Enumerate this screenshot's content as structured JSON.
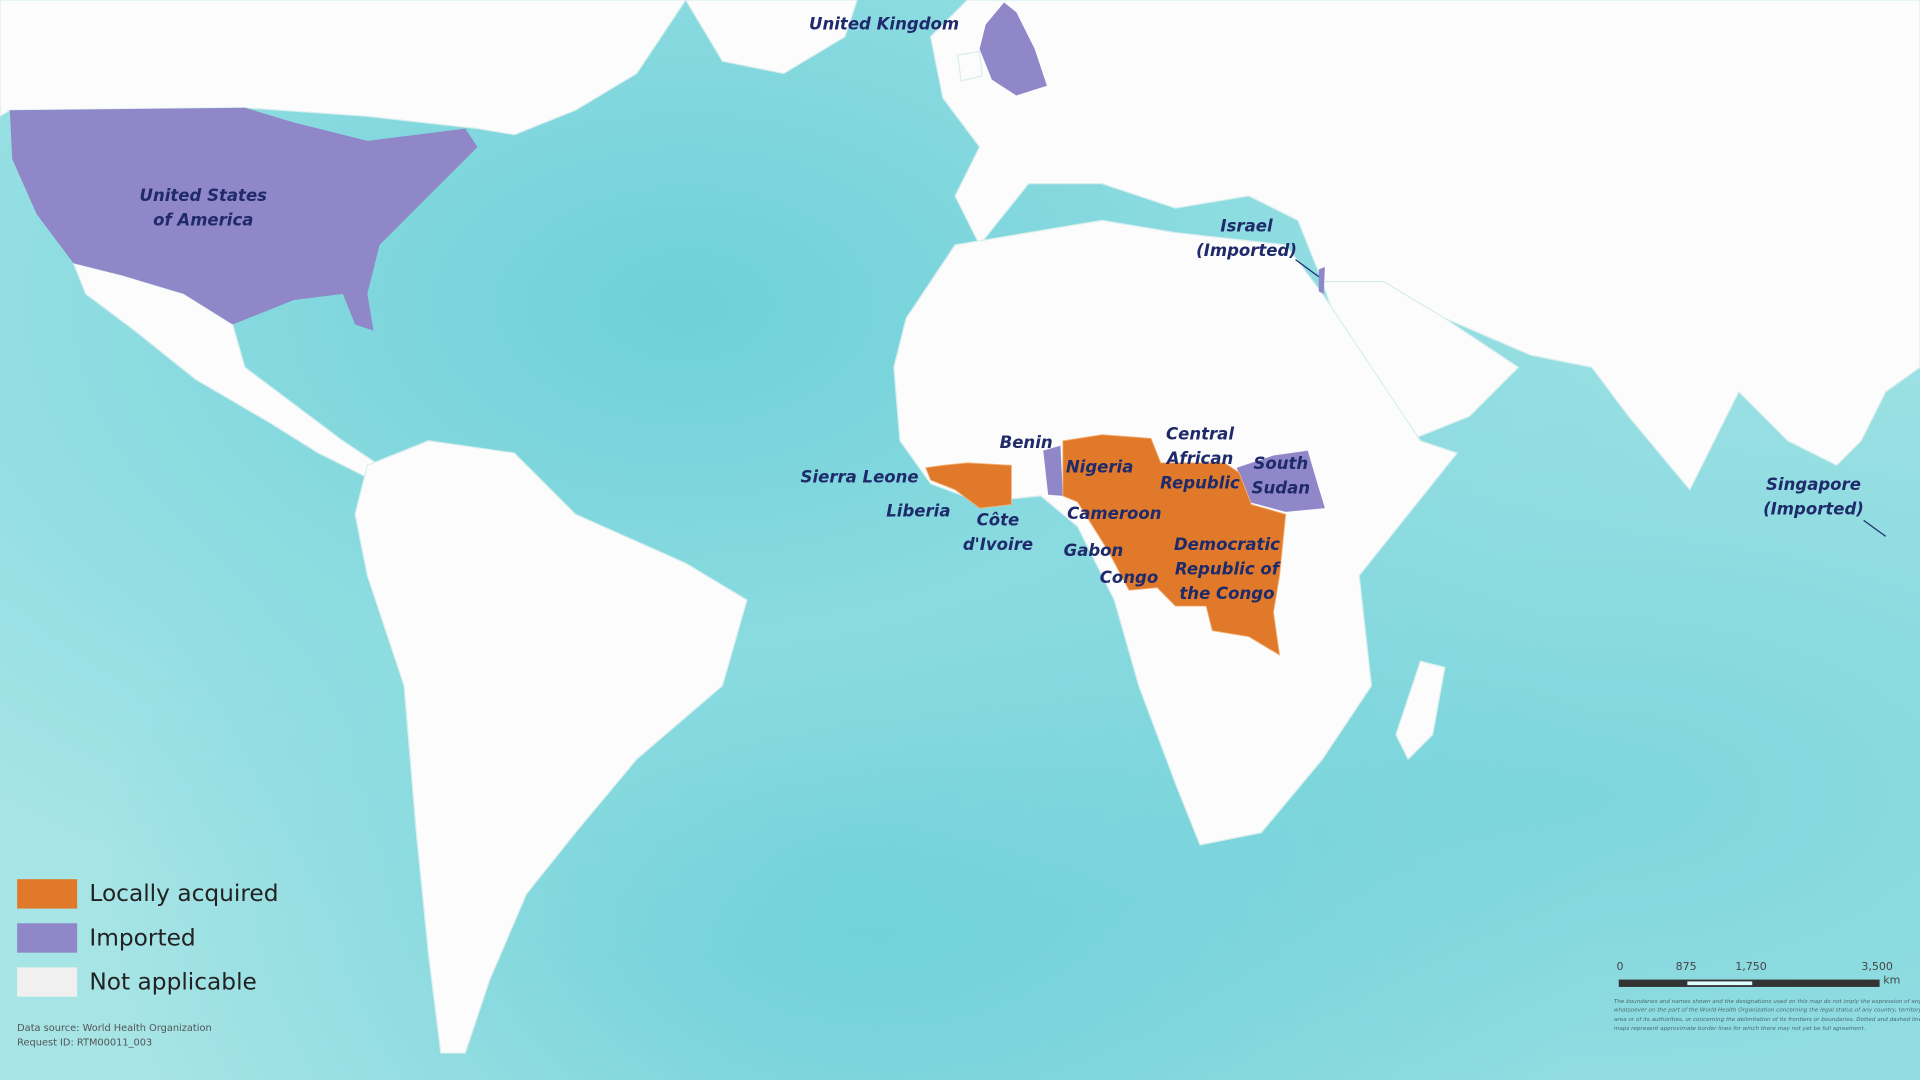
{
  "colors": {
    "locally_acquired": "#e07a2a",
    "imported": "#8f87c8",
    "not_applicable": "#f0f0f0",
    "land": "#fcfcfc",
    "label": "#1f2a6b"
  },
  "labels": {
    "uk": "United Kingdom",
    "usa": "United States\nof America",
    "israel": "Israel\n(Imported)",
    "benin": "Benin",
    "sierra_leone": "Sierra Leone",
    "liberia": "Liberia",
    "cote_divoire": "Côte\nd'Ivoire",
    "nigeria": "Nigeria",
    "car": "Central\nAfrican\nRepublic",
    "south_sudan": "South\nSudan",
    "cameroon": "Cameroon",
    "gabon": "Gabon",
    "congo": "Congo",
    "drc": "Democratic\nRepublic of\nthe Congo",
    "singapore": "Singapore\n(Imported)"
  },
  "legend": [
    {
      "label": "Locally acquired",
      "color": "#e07a2a"
    },
    {
      "label": "Imported",
      "color": "#8f87c8"
    },
    {
      "label": "Not applicable",
      "color": "#f0f0f0"
    }
  ],
  "source": {
    "line1": "Data source: World Health Organization",
    "line2": "Request ID: RTM00011_003"
  },
  "scale_bar": {
    "ticks": [
      "0",
      "875",
      "1,750",
      "3,500"
    ],
    "unit": "km"
  },
  "disclaimer": "The boundaries and names shown and the designations used on this map do not imply the expression of any opinion whatsoever on the part of the World Health Organization concerning the legal status of any country, territory, city or area or of its authorities, or concerning the delimitation of its frontiers or boundaries. Dotted and dashed lines on maps represent approximate border lines for which there may not yet be full agreement."
}
